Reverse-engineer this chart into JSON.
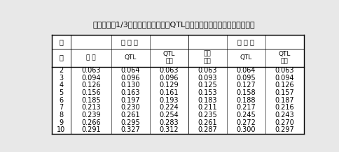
{
  "title": "表２　腹内1/3選抜を行った場合のQTLおよびその近傍の実現値と評価値",
  "header1_left": "世",
  "header2_left": "代",
  "group1_label": "実 現 値",
  "group2_label": "評 価 値",
  "col2_labels": [
    "全 体",
    "QTL",
    "QTL\n近傍",
    "近交\n係数",
    "QTL",
    "QTL\n近傍"
  ],
  "rows": [
    [
      2,
      0.063,
      0.064,
      0.063,
      0.063,
      0.064,
      0.063
    ],
    [
      3,
      0.094,
      0.096,
      0.096,
      0.093,
      0.095,
      0.094
    ],
    [
      4,
      0.126,
      0.13,
      0.129,
      0.125,
      0.127,
      0.126
    ],
    [
      5,
      0.156,
      0.163,
      0.161,
      0.153,
      0.158,
      0.157
    ],
    [
      6,
      0.185,
      0.197,
      0.193,
      0.183,
      0.188,
      0.187
    ],
    [
      7,
      0.213,
      0.23,
      0.224,
      0.211,
      0.217,
      0.216
    ],
    [
      8,
      0.239,
      0.261,
      0.254,
      0.235,
      0.245,
      0.243
    ],
    [
      9,
      0.266,
      0.295,
      0.283,
      0.261,
      0.272,
      0.27
    ],
    [
      10,
      0.291,
      0.327,
      0.312,
      0.287,
      0.3,
      0.297
    ]
  ],
  "bg_color": "#e8e8e8",
  "table_bg": "#ffffff",
  "font_size": 7.0,
  "title_font_size": 8.0
}
